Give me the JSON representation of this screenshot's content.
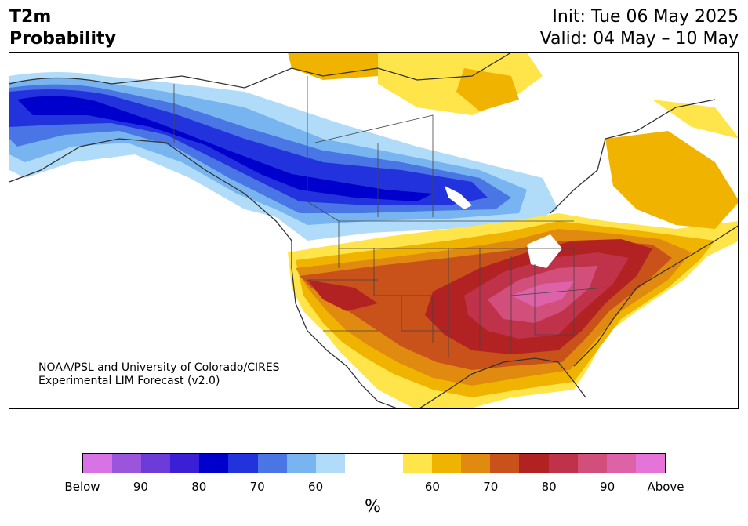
{
  "header": {
    "title_line1": "T2m",
    "title_line2": "Probability",
    "init_line": "Init: Tue 06 May 2025",
    "valid_line": "Valid: 04 May – 10 May"
  },
  "credit": {
    "line1": "NOAA/PSL and University of Colorado/CIRES",
    "line2": "Experimental LIM Forecast (v2.0)"
  },
  "colorbar": {
    "colors": [
      "#d873e6",
      "#9b55dc",
      "#6c3bd9",
      "#3a1fd6",
      "#0000cc",
      "#2233dd",
      "#4a75e5",
      "#78b4f0",
      "#b0dcfa",
      "#ffffff",
      "#ffffff",
      "#ffe54a",
      "#f0b400",
      "#e08a10",
      "#c8521a",
      "#b22222",
      "#c0324a",
      "#d24f7c",
      "#dd62a8",
      "#e474d8"
    ],
    "tick_labels": [
      "Below",
      "90",
      "80",
      "70",
      "60",
      "60",
      "70",
      "80",
      "90",
      "Above"
    ],
    "units": "%"
  },
  "map": {
    "region": "North America",
    "variable": "T2m probability"
  }
}
